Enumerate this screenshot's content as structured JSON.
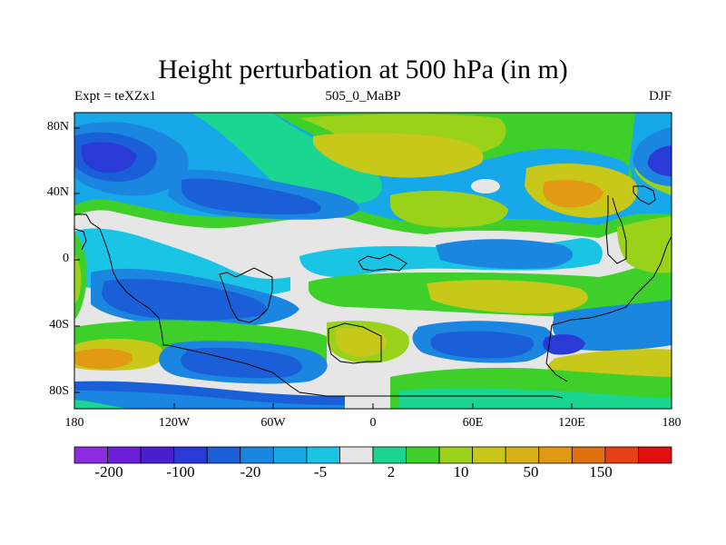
{
  "title": "Height perturbation at 500 hPa (in m)",
  "subtitle_left": "Expt = teXZx1",
  "subtitle_center": "505_0_MaBP",
  "subtitle_right": "DJF",
  "y_ticks": [
    "80N",
    "40N",
    "0",
    "40S",
    "80S"
  ],
  "x_ticks": [
    "180",
    "120W",
    "60W",
    "0",
    "60E",
    "120E",
    "180"
  ],
  "colorbar": {
    "labels": [
      "-200",
      "-100",
      "-20",
      "-5",
      "2",
      "10",
      "50",
      "150"
    ],
    "colors": [
      "#8c2be0",
      "#6a1fd8",
      "#4a1fd0",
      "#2a3ad6",
      "#1a5fd8",
      "#1a86e0",
      "#16a8e8",
      "#1ac4e4",
      "#e6e6e6",
      "#1ad690",
      "#3ecf2a",
      "#9ad21a",
      "#c8c81a",
      "#d8b01a",
      "#e29a14",
      "#e0700e",
      "#e84016",
      "#e01010"
    ]
  },
  "map_colors": {
    "background": "#e6e6e6",
    "deep_blue": "#2a3ad6",
    "blue": "#1a5fd8",
    "mid_blue": "#1a86e0",
    "light_blue": "#16a8e8",
    "cyan": "#1ac4e4",
    "mint": "#1ad690",
    "green": "#3ecf2a",
    "yellow_green": "#9ad21a",
    "olive": "#c8c81a",
    "orange": "#e29a14"
  }
}
